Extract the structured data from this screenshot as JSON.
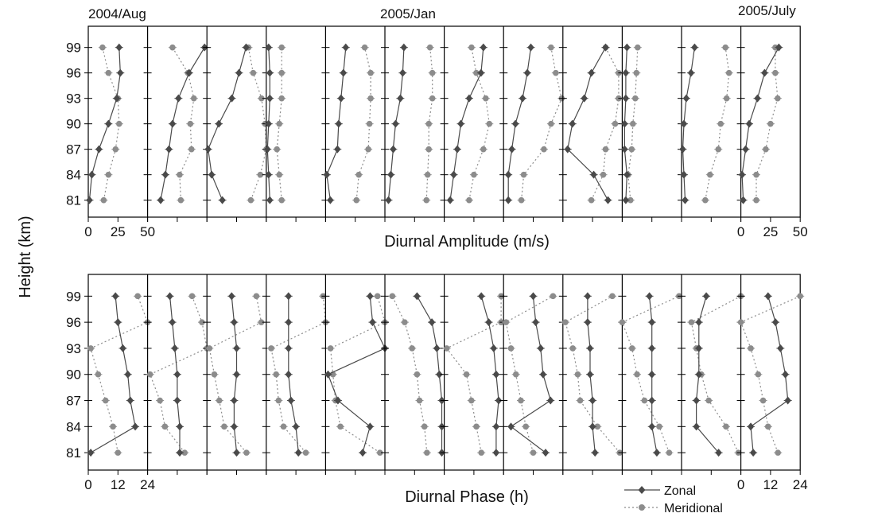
{
  "figure": {
    "ylabel": "Height (km)",
    "headers": [
      "2004/Aug",
      "2005/Jan",
      "2005/July"
    ],
    "legend": [
      {
        "name": "Zonal",
        "color": "#4a4a4a",
        "style": "solid",
        "marker": "diamond"
      },
      {
        "name": "Meridional",
        "color": "#8c8c8c",
        "style": "dotted",
        "marker": "circle"
      }
    ]
  },
  "chart_data": [
    {
      "type": "line",
      "title": "Diurnal Amplitude",
      "xlabel": "Diurnal Amplitude (m/s)",
      "ylabel": "Height (km)",
      "panels": 12,
      "xlim": [
        0,
        50
      ],
      "xticks_shown": [
        "0",
        "25",
        "50"
      ],
      "ylim": [
        79,
        101.5
      ],
      "y": [
        81,
        84,
        87,
        90,
        93,
        96,
        99
      ],
      "yticks": [
        "81",
        "84",
        "87",
        "90",
        "93",
        "96",
        "99"
      ],
      "series": [
        {
          "name": "Zonal",
          "values": [
            [
              1,
              3,
              9,
              17,
              24,
              27,
              26
            ],
            [
              11,
              15,
              18,
              21,
              26,
              35,
              48
            ],
            [
              13,
              4,
              1,
              10,
              21,
              27,
              33
            ],
            [
              3,
              2,
              1,
              2,
              3,
              3,
              2
            ],
            [
              4,
              1,
              10,
              11,
              13,
              15,
              17
            ],
            [
              3,
              5,
              7,
              9,
              13,
              15,
              16
            ],
            [
              5,
              8,
              11,
              14,
              21,
              31,
              33
            ],
            [
              4,
              4,
              7,
              10,
              16,
              20,
              23
            ],
            [
              38,
              26,
              4,
              8,
              18,
              24,
              36
            ],
            [
              3,
              4,
              2,
              2,
              3,
              3,
              4
            ],
            [
              3,
              2,
              1,
              2,
              4,
              8,
              11
            ],
            [
              2,
              1,
              4,
              7,
              14,
              20,
              32
            ]
          ]
        },
        {
          "name": "Meridional",
          "values": [
            [
              13,
              17,
              23,
              26,
              25,
              17,
              12
            ],
            [
              28,
              27,
              37,
              36,
              39,
              34,
              21
            ],
            [
              37,
              45,
              50,
              49,
              46,
              39,
              35
            ],
            [
              13,
              11,
              9,
              11,
              13,
              13,
              13
            ],
            [
              26,
              28,
              36,
              37,
              38,
              38,
              33
            ],
            [
              35,
              36,
              37,
              37,
              40,
              40,
              38
            ],
            [
              21,
              25,
              33,
              38,
              35,
              27,
              23
            ],
            [
              15,
              17,
              34,
              40,
              49,
              44,
              40
            ],
            [
              24,
              34,
              36,
              44,
              47,
              47,
              36
            ],
            [
              7,
              5,
              8,
              9,
              11,
              12,
              13
            ],
            [
              20,
              24,
              31,
              33,
              38,
              40,
              37
            ],
            [
              13,
              13,
              21,
              25,
              31,
              29,
              29
            ]
          ]
        }
      ]
    },
    {
      "type": "line",
      "title": "Diurnal Phase",
      "xlabel": "Diurnal Phase (h)",
      "ylabel": "Height (km)",
      "panels": 12,
      "xlim": [
        0,
        24
      ],
      "xticks_shown": [
        "0",
        "12",
        "24"
      ],
      "ylim": [
        79,
        101.5
      ],
      "y": [
        81,
        84,
        87,
        90,
        93,
        96,
        99
      ],
      "yticks": [
        "81",
        "84",
        "87",
        "90",
        "93",
        "96",
        "99"
      ],
      "series": [
        {
          "name": "Zonal",
          "values": [
            [
              1,
              19,
              17,
              16,
              14,
              12,
              11
            ],
            [
              13,
              13,
              12,
              12,
              11,
              10,
              9
            ],
            [
              12,
              11,
              11,
              12,
              12,
              11,
              10
            ],
            [
              13,
              12,
              10,
              9,
              9,
              9,
              9
            ],
            [
              15,
              18,
              5,
              1,
              24,
              19,
              18
            ],
            [
              23,
              23,
              23,
              22,
              21,
              19,
              13
            ],
            [
              21,
              21,
              22,
              21,
              20,
              18,
              15
            ],
            [
              17,
              3,
              19,
              16,
              15,
              13,
              12
            ],
            [
              13,
              12,
              12,
              11,
              11,
              10,
              10
            ],
            [
              14,
              12,
              12,
              12,
              12,
              12,
              11
            ],
            [
              15,
              6,
              6,
              7,
              7,
              7,
              10
            ],
            [
              5,
              4,
              19,
              18,
              16,
              14,
              11
            ]
          ]
        },
        {
          "name": "Meridional",
          "values": [
            [
              12,
              10,
              7,
              4,
              1,
              24,
              20
            ],
            [
              15,
              7,
              5,
              1,
              24,
              22,
              18
            ],
            [
              16,
              7,
              5,
              3,
              1,
              22,
              20
            ],
            [
              16,
              7,
              5,
              4,
              2,
              24,
              23
            ],
            [
              22,
              6,
              4,
              3,
              2,
              24,
              21
            ],
            [
              17,
              16,
              14,
              13,
              11,
              8,
              3
            ],
            [
              15,
              13,
              11,
              9,
              1,
              23,
              23
            ],
            [
              12,
              9,
              7,
              5,
              3,
              1,
              20
            ],
            [
              23,
              14,
              7,
              6,
              4,
              1,
              20
            ],
            [
              19,
              15,
              9,
              6,
              4,
              0,
              23
            ],
            [
              23,
              18,
              11,
              8,
              6,
              4,
              24
            ],
            [
              15,
              11,
              9,
              7,
              4,
              0,
              24
            ]
          ]
        }
      ]
    }
  ]
}
